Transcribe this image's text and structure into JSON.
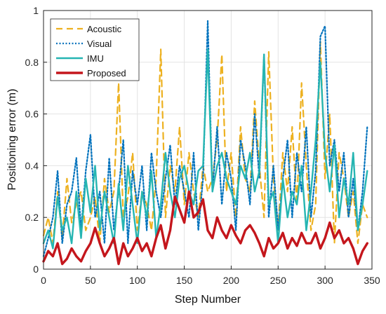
{
  "chart_data": {
    "type": "line",
    "xlabel": "Step Number",
    "ylabel": "Positioning error (m)",
    "xlim": [
      0,
      350
    ],
    "ylim": [
      0,
      1
    ],
    "x_ticks": [
      0,
      50,
      100,
      150,
      200,
      250,
      300,
      350
    ],
    "y_ticks": [
      0,
      0.2,
      0.4,
      0.6,
      0.8,
      1
    ],
    "x_tick_labels": [
      "0",
      "50",
      "100",
      "150",
      "200",
      "250",
      "300",
      "350"
    ],
    "y_tick_labels": [
      "0",
      "0.2",
      "0.4",
      "0.6",
      "0.8",
      "1"
    ],
    "grid": true,
    "legend_position": "top-left",
    "series": [
      {
        "name": "Acoustic",
        "color": "#EDB120",
        "style": "dashed",
        "x": [
          0,
          5,
          10,
          15,
          20,
          25,
          30,
          35,
          40,
          45,
          50,
          55,
          60,
          65,
          70,
          75,
          80,
          85,
          90,
          95,
          100,
          105,
          110,
          115,
          120,
          125,
          130,
          135,
          140,
          145,
          150,
          155,
          160,
          165,
          170,
          175,
          180,
          185,
          190,
          195,
          200,
          205,
          210,
          215,
          220,
          225,
          230,
          235,
          240,
          245,
          250,
          255,
          260,
          265,
          270,
          275,
          280,
          285,
          290,
          295,
          300,
          305,
          310,
          315,
          320,
          325,
          330,
          335,
          340,
          345
        ],
        "values": [
          0.13,
          0.2,
          0.1,
          0.3,
          0.12,
          0.35,
          0.18,
          0.25,
          0.3,
          0.15,
          0.2,
          0.28,
          0.1,
          0.35,
          0.22,
          0.3,
          0.72,
          0.2,
          0.28,
          0.45,
          0.15,
          0.3,
          0.25,
          0.15,
          0.35,
          0.85,
          0.2,
          0.4,
          0.3,
          0.55,
          0.25,
          0.45,
          0.3,
          0.2,
          0.4,
          0.3,
          0.35,
          0.5,
          0.83,
          0.3,
          0.45,
          0.2,
          0.55,
          0.35,
          0.3,
          0.65,
          0.4,
          0.2,
          0.84,
          0.35,
          0.15,
          0.45,
          0.3,
          0.55,
          0.25,
          0.72,
          0.4,
          0.15,
          0.25,
          0.88,
          0.35,
          0.6,
          0.1,
          0.45,
          0.35,
          0.2,
          0.3,
          0.1,
          0.25,
          0.2
        ]
      },
      {
        "name": "Visual",
        "color": "#0072BD",
        "style": "dotted",
        "x": [
          0,
          5,
          10,
          15,
          20,
          25,
          30,
          35,
          40,
          45,
          50,
          55,
          60,
          65,
          70,
          75,
          80,
          85,
          90,
          95,
          100,
          105,
          110,
          115,
          120,
          125,
          130,
          135,
          140,
          145,
          150,
          155,
          160,
          165,
          170,
          175,
          180,
          185,
          190,
          195,
          200,
          205,
          210,
          215,
          220,
          225,
          230,
          235,
          240,
          245,
          250,
          255,
          260,
          265,
          270,
          275,
          280,
          285,
          290,
          295,
          300,
          305,
          310,
          315,
          320,
          325,
          330,
          335,
          340,
          345
        ],
        "values": [
          0.05,
          0.12,
          0.2,
          0.38,
          0.1,
          0.25,
          0.3,
          0.43,
          0.15,
          0.38,
          0.52,
          0.2,
          0.3,
          0.1,
          0.43,
          0.15,
          0.3,
          0.5,
          0.1,
          0.38,
          0.25,
          0.4,
          0.15,
          0.45,
          0.3,
          0.2,
          0.35,
          0.48,
          0.25,
          0.4,
          0.3,
          0.2,
          0.45,
          0.15,
          0.35,
          0.96,
          0.3,
          0.55,
          0.25,
          0.45,
          0.35,
          0.15,
          0.5,
          0.4,
          0.25,
          0.6,
          0.35,
          0.83,
          0.2,
          0.4,
          0.15,
          0.35,
          0.5,
          0.2,
          0.45,
          0.3,
          0.55,
          0.2,
          0.38,
          0.9,
          0.94,
          0.4,
          0.5,
          0.3,
          0.45,
          0.2,
          0.35,
          0.15,
          0.3,
          0.55
        ]
      },
      {
        "name": "IMU",
        "color": "#26B5B2",
        "style": "solid",
        "x": [
          0,
          5,
          10,
          15,
          20,
          25,
          30,
          35,
          40,
          45,
          50,
          55,
          60,
          65,
          70,
          75,
          80,
          85,
          90,
          95,
          100,
          105,
          110,
          115,
          120,
          125,
          130,
          135,
          140,
          145,
          150,
          155,
          160,
          165,
          170,
          175,
          180,
          185,
          190,
          195,
          200,
          205,
          210,
          215,
          220,
          225,
          230,
          235,
          240,
          245,
          250,
          255,
          260,
          265,
          270,
          275,
          280,
          285,
          290,
          295,
          300,
          305,
          310,
          315,
          320,
          325,
          330,
          335,
          340,
          345
        ],
        "values": [
          0.1,
          0.15,
          0.08,
          0.28,
          0.15,
          0.2,
          0.1,
          0.3,
          0.12,
          0.35,
          0.22,
          0.4,
          0.15,
          0.3,
          0.2,
          0.1,
          0.33,
          0.15,
          0.4,
          0.25,
          0.1,
          0.3,
          0.2,
          0.38,
          0.12,
          0.25,
          0.45,
          0.3,
          0.2,
          0.35,
          0.4,
          0.3,
          0.25,
          0.38,
          0.4,
          0.85,
          0.3,
          0.4,
          0.45,
          0.35,
          0.3,
          0.25,
          0.4,
          0.35,
          0.45,
          0.3,
          0.38,
          0.83,
          0.25,
          0.3,
          0.1,
          0.35,
          0.2,
          0.3,
          0.25,
          0.4,
          0.15,
          0.3,
          0.5,
          0.8,
          0.45,
          0.3,
          0.48,
          0.2,
          0.35,
          0.25,
          0.45,
          0.15,
          0.25,
          0.38
        ]
      },
      {
        "name": "Proposed",
        "color": "#C4161C",
        "style": "solid",
        "x": [
          0,
          5,
          10,
          15,
          20,
          25,
          30,
          35,
          40,
          45,
          50,
          55,
          60,
          65,
          70,
          75,
          80,
          85,
          90,
          95,
          100,
          105,
          110,
          115,
          120,
          125,
          130,
          135,
          140,
          145,
          150,
          155,
          160,
          165,
          170,
          175,
          180,
          185,
          190,
          195,
          200,
          205,
          210,
          215,
          220,
          225,
          230,
          235,
          240,
          245,
          250,
          255,
          260,
          265,
          270,
          275,
          280,
          285,
          290,
          295,
          300,
          305,
          310,
          315,
          320,
          325,
          330,
          335,
          340,
          345
        ],
        "values": [
          0.03,
          0.07,
          0.05,
          0.1,
          0.02,
          0.04,
          0.08,
          0.05,
          0.03,
          0.07,
          0.1,
          0.16,
          0.1,
          0.05,
          0.08,
          0.12,
          0.02,
          0.1,
          0.05,
          0.08,
          0.12,
          0.07,
          0.1,
          0.05,
          0.12,
          0.17,
          0.08,
          0.15,
          0.28,
          0.23,
          0.18,
          0.3,
          0.2,
          0.22,
          0.27,
          0.15,
          0.12,
          0.2,
          0.15,
          0.12,
          0.17,
          0.13,
          0.1,
          0.15,
          0.17,
          0.14,
          0.1,
          0.05,
          0.12,
          0.08,
          0.1,
          0.14,
          0.08,
          0.12,
          0.09,
          0.14,
          0.1,
          0.1,
          0.14,
          0.08,
          0.12,
          0.18,
          0.12,
          0.15,
          0.1,
          0.12,
          0.08,
          0.02,
          0.07,
          0.1
        ]
      }
    ]
  }
}
